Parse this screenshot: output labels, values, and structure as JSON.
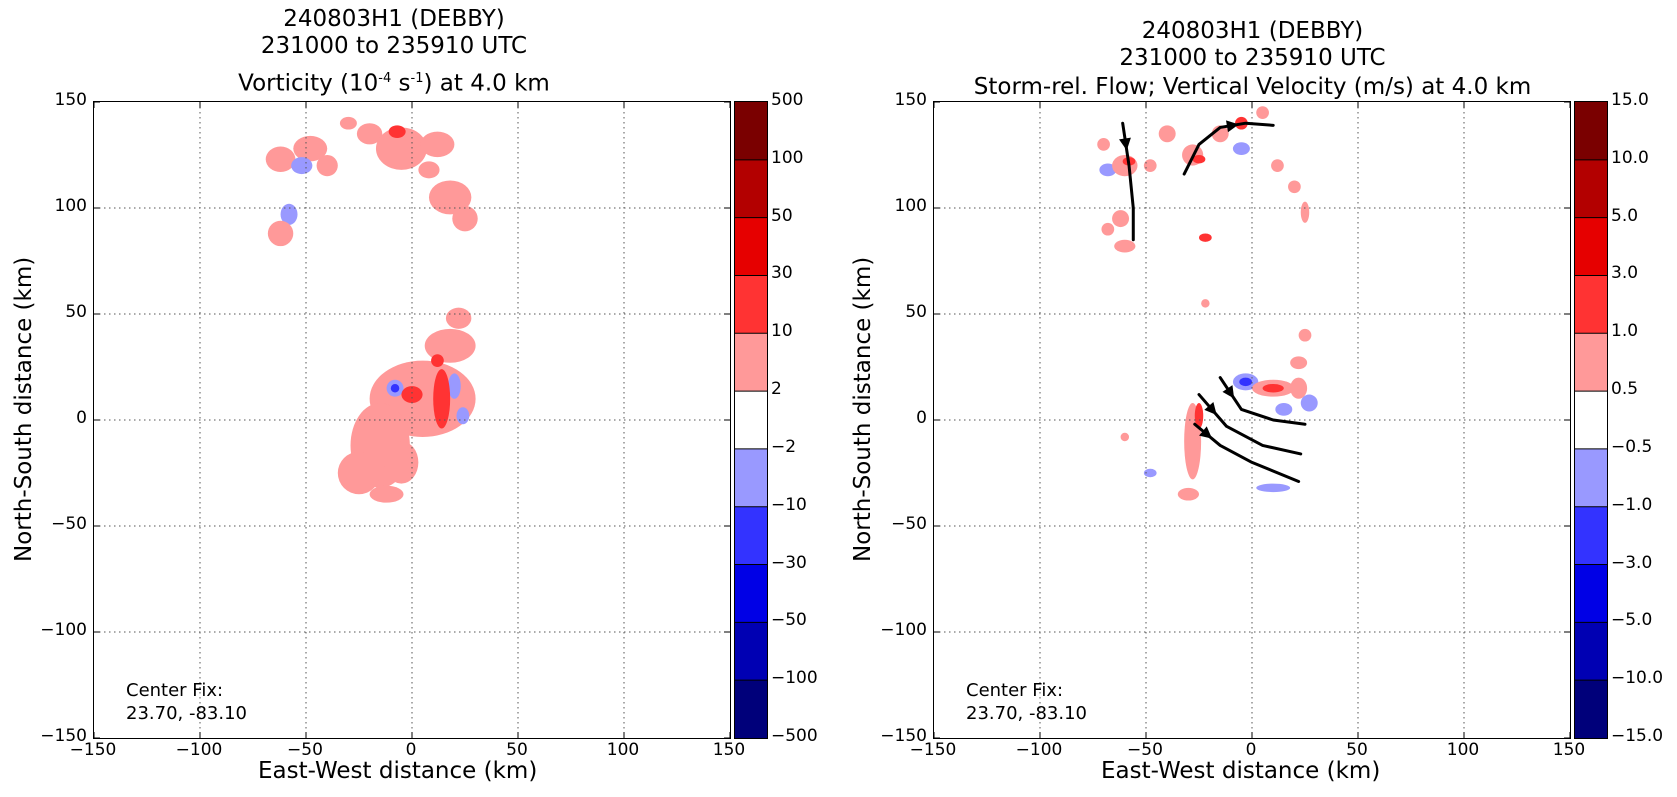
{
  "chart_data": [
    {
      "type": "heatmap",
      "title_lines": [
        "240803H1 (DEBBY)",
        "231000 to 235910 UTC"
      ],
      "title_var_prefix": "Vorticity (10",
      "title_var_sup1": "-4",
      "title_var_mid": " s",
      "title_var_sup2": "-1",
      "title_var_suffix": ") at 4.0 km",
      "xlabel": "East-West distance (km)",
      "ylabel": "North-South distance (km)",
      "xlim": [
        -150,
        150
      ],
      "ylim": [
        -150,
        150
      ],
      "xticks": [
        "−150",
        "−100",
        "−50",
        "0",
        "50",
        "100",
        "150"
      ],
      "yticks": [
        "150",
        "100",
        "50",
        "0",
        "−50",
        "−100",
        "−150"
      ],
      "grid": true,
      "center_fix_label": "Center Fix:",
      "center_fix_value": "23.70, -83.10",
      "colorbar_ticks": [
        "500",
        "100",
        "50",
        "30",
        "10",
        "2",
        "−2",
        "−10",
        "−30",
        "−50",
        "−100",
        "−500"
      ],
      "colorbar_colors": [
        "#7a0000",
        "#b30000",
        "#e60000",
        "#ff3333",
        "#ff9999",
        "#ffffff",
        "#9999ff",
        "#3333ff",
        "#0000e6",
        "#0000b3",
        "#00007a"
      ],
      "blobs": [
        {
          "x": -62,
          "y": 123,
          "rx": 7,
          "ry": 6,
          "level": 1
        },
        {
          "x": -48,
          "y": 128,
          "rx": 8,
          "ry": 6,
          "level": 1
        },
        {
          "x": -52,
          "y": 120,
          "rx": 5,
          "ry": 4,
          "level": -1
        },
        {
          "x": -40,
          "y": 120,
          "rx": 5,
          "ry": 5,
          "level": 1
        },
        {
          "x": -30,
          "y": 140,
          "rx": 4,
          "ry": 3,
          "level": 1
        },
        {
          "x": -20,
          "y": 135,
          "rx": 6,
          "ry": 5,
          "level": 1
        },
        {
          "x": -10,
          "y": 132,
          "rx": 5,
          "ry": 4,
          "level": -1
        },
        {
          "x": -5,
          "y": 128,
          "rx": 12,
          "ry": 10,
          "level": 1
        },
        {
          "x": -7,
          "y": 136,
          "rx": 4,
          "ry": 3,
          "level": 2
        },
        {
          "x": 12,
          "y": 130,
          "rx": 8,
          "ry": 6,
          "level": 1
        },
        {
          "x": 8,
          "y": 118,
          "rx": 5,
          "ry": 4,
          "level": 1
        },
        {
          "x": 18,
          "y": 105,
          "rx": 10,
          "ry": 8,
          "level": 1
        },
        {
          "x": 25,
          "y": 95,
          "rx": 6,
          "ry": 6,
          "level": 1
        },
        {
          "x": -58,
          "y": 97,
          "rx": 4,
          "ry": 5,
          "level": -1
        },
        {
          "x": -62,
          "y": 88,
          "rx": 6,
          "ry": 6,
          "level": 1
        },
        {
          "x": 22,
          "y": 48,
          "rx": 6,
          "ry": 5,
          "level": 1
        },
        {
          "x": 18,
          "y": 35,
          "rx": 12,
          "ry": 8,
          "level": 1
        },
        {
          "x": 5,
          "y": 10,
          "rx": 25,
          "ry": 18,
          "level": 1
        },
        {
          "x": -15,
          "y": -12,
          "rx": 14,
          "ry": 20,
          "level": 1
        },
        {
          "x": -25,
          "y": -25,
          "rx": 10,
          "ry": 10,
          "level": 1
        },
        {
          "x": -5,
          "y": -20,
          "rx": 8,
          "ry": 10,
          "level": 1
        },
        {
          "x": -12,
          "y": -35,
          "rx": 8,
          "ry": 4,
          "level": 1
        },
        {
          "x": 14,
          "y": 10,
          "rx": 4,
          "ry": 14,
          "level": 2
        },
        {
          "x": 0,
          "y": 12,
          "rx": 5,
          "ry": 4,
          "level": 2
        },
        {
          "x": 12,
          "y": 28,
          "rx": 3,
          "ry": 3,
          "level": 2
        },
        {
          "x": -8,
          "y": 15,
          "rx": 4,
          "ry": 4,
          "level": -1
        },
        {
          "x": -8,
          "y": 15,
          "rx": 2,
          "ry": 2,
          "level": -2
        },
        {
          "x": 20,
          "y": 16,
          "rx": 3,
          "ry": 6,
          "level": -1
        },
        {
          "x": 24,
          "y": 2,
          "rx": 3,
          "ry": 4,
          "level": -1
        }
      ],
      "streamlines": []
    },
    {
      "type": "heatmap",
      "title_lines": [
        "240803H1 (DEBBY)",
        "231000 to 235910 UTC",
        "Storm-rel. Flow; Vertical Velocity (m/s) at 4.0 km"
      ],
      "xlabel": "East-West distance (km)",
      "ylabel": "North-South distance (km)",
      "xlim": [
        -150,
        150
      ],
      "ylim": [
        -150,
        150
      ],
      "xticks": [
        "−150",
        "−100",
        "−50",
        "0",
        "50",
        "100",
        "150"
      ],
      "yticks": [
        "150",
        "100",
        "50",
        "0",
        "−50",
        "−100",
        "−150"
      ],
      "grid": true,
      "center_fix_label": "Center Fix:",
      "center_fix_value": "23.70, -83.10",
      "colorbar_ticks": [
        "15.0",
        "10.0",
        "5.0",
        "3.0",
        "1.0",
        "0.5",
        "−0.5",
        "−1.0",
        "−3.0",
        "−5.0",
        "−10.0",
        "−15.0"
      ],
      "colorbar_colors": [
        "#7a0000",
        "#b30000",
        "#e60000",
        "#ff3333",
        "#ff9999",
        "#ffffff",
        "#9999ff",
        "#3333ff",
        "#0000e6",
        "#0000b3",
        "#00007a"
      ],
      "blobs": [
        {
          "x": -70,
          "y": 130,
          "rx": 3,
          "ry": 3,
          "level": 1
        },
        {
          "x": -68,
          "y": 118,
          "rx": 4,
          "ry": 3,
          "level": -1
        },
        {
          "x": -60,
          "y": 120,
          "rx": 6,
          "ry": 5,
          "level": 1
        },
        {
          "x": -58,
          "y": 122,
          "rx": 3,
          "ry": 2,
          "level": 2
        },
        {
          "x": -48,
          "y": 120,
          "rx": 3,
          "ry": 3,
          "level": 1
        },
        {
          "x": -40,
          "y": 135,
          "rx": 4,
          "ry": 4,
          "level": 1
        },
        {
          "x": -28,
          "y": 125,
          "rx": 5,
          "ry": 5,
          "level": 1
        },
        {
          "x": -25,
          "y": 123,
          "rx": 3,
          "ry": 2,
          "level": 2
        },
        {
          "x": -15,
          "y": 135,
          "rx": 4,
          "ry": 4,
          "level": 1
        },
        {
          "x": -5,
          "y": 140,
          "rx": 3,
          "ry": 3,
          "level": 2
        },
        {
          "x": -5,
          "y": 128,
          "rx": 4,
          "ry": 3,
          "level": -1
        },
        {
          "x": 5,
          "y": 145,
          "rx": 3,
          "ry": 3,
          "level": 1
        },
        {
          "x": 12,
          "y": 120,
          "rx": 3,
          "ry": 3,
          "level": 1
        },
        {
          "x": 20,
          "y": 110,
          "rx": 3,
          "ry": 3,
          "level": 1
        },
        {
          "x": 25,
          "y": 98,
          "rx": 2,
          "ry": 5,
          "level": 1
        },
        {
          "x": -62,
          "y": 95,
          "rx": 4,
          "ry": 4,
          "level": 1
        },
        {
          "x": -68,
          "y": 90,
          "rx": 3,
          "ry": 3,
          "level": 1
        },
        {
          "x": -60,
          "y": 82,
          "rx": 5,
          "ry": 3,
          "level": 1
        },
        {
          "x": -22,
          "y": 86,
          "rx": 3,
          "ry": 2,
          "level": 2
        },
        {
          "x": -22,
          "y": 55,
          "rx": 2,
          "ry": 2,
          "level": 1
        },
        {
          "x": 25,
          "y": 40,
          "rx": 3,
          "ry": 3,
          "level": 1
        },
        {
          "x": 22,
          "y": 27,
          "rx": 4,
          "ry": 3,
          "level": 1
        },
        {
          "x": -3,
          "y": 18,
          "rx": 6,
          "ry": 4,
          "level": -1
        },
        {
          "x": -3,
          "y": 18,
          "rx": 3,
          "ry": 2,
          "level": -2
        },
        {
          "x": 10,
          "y": 15,
          "rx": 10,
          "ry": 4,
          "level": 1
        },
        {
          "x": 10,
          "y": 15,
          "rx": 5,
          "ry": 2,
          "level": 2
        },
        {
          "x": 22,
          "y": 15,
          "rx": 4,
          "ry": 5,
          "level": 1
        },
        {
          "x": 27,
          "y": 8,
          "rx": 4,
          "ry": 4,
          "level": -1
        },
        {
          "x": 15,
          "y": 5,
          "rx": 4,
          "ry": 3,
          "level": -1
        },
        {
          "x": -28,
          "y": -10,
          "rx": 4,
          "ry": 18,
          "level": 1
        },
        {
          "x": -25,
          "y": 2,
          "rx": 2,
          "ry": 6,
          "level": 2
        },
        {
          "x": -30,
          "y": -35,
          "rx": 5,
          "ry": 3,
          "level": 1
        },
        {
          "x": -48,
          "y": -25,
          "rx": 3,
          "ry": 2,
          "level": -1
        },
        {
          "x": 10,
          "y": -32,
          "rx": 8,
          "ry": 2,
          "level": -1
        },
        {
          "x": -60,
          "y": -8,
          "rx": 2,
          "ry": 2,
          "level": 1
        }
      ],
      "streamlines": [
        {
          "points": [
            [
              -61,
              140
            ],
            [
              -58,
              120
            ],
            [
              -56,
              100
            ],
            [
              -56,
              85
            ]
          ],
          "arrow_at": 1
        },
        {
          "points": [
            [
              -32,
              116
            ],
            [
              -25,
              130
            ],
            [
              -15,
              138
            ],
            [
              -3,
              140
            ],
            [
              10,
              139
            ]
          ],
          "arrow_at": 3
        },
        {
          "points": [
            [
              -15,
              20
            ],
            [
              -5,
              5
            ],
            [
              10,
              0
            ],
            [
              25,
              -2
            ]
          ],
          "arrow_at": 1
        },
        {
          "points": [
            [
              -25,
              12
            ],
            [
              -12,
              -3
            ],
            [
              5,
              -12
            ],
            [
              23,
              -16
            ]
          ],
          "arrow_at": 1
        },
        {
          "points": [
            [
              -27,
              -2
            ],
            [
              -15,
              -12
            ],
            [
              0,
              -20
            ],
            [
              22,
              -29
            ]
          ],
          "arrow_at": 1
        }
      ]
    }
  ]
}
